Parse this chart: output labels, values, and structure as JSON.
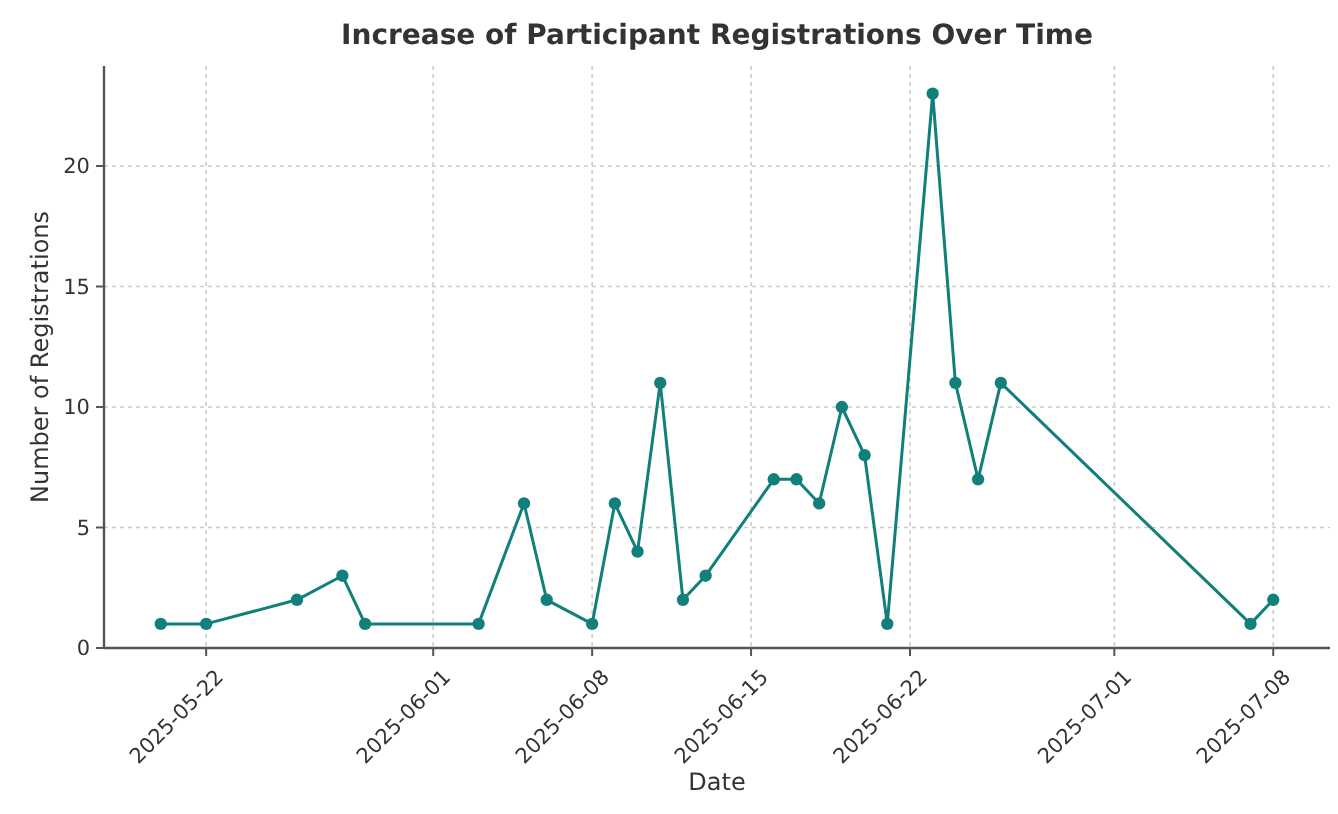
{
  "chart_data": {
    "type": "line",
    "title": "Increase of Participant Registrations Over Time",
    "xlabel": "Date",
    "ylabel": "Number of Registrations",
    "x": [
      "2025-05-20",
      "2025-05-22",
      "2025-05-26",
      "2025-05-28",
      "2025-05-29",
      "2025-06-03",
      "2025-06-05",
      "2025-06-06",
      "2025-06-08",
      "2025-06-09",
      "2025-06-10",
      "2025-06-11",
      "2025-06-12",
      "2025-06-13",
      "2025-06-16",
      "2025-06-17",
      "2025-06-18",
      "2025-06-19",
      "2025-06-20",
      "2025-06-21",
      "2025-06-23",
      "2025-06-24",
      "2025-06-25",
      "2025-06-26",
      "2025-07-07",
      "2025-07-08"
    ],
    "series": [
      {
        "color": "#11807a",
        "values": [
          1,
          1,
          2,
          3,
          1,
          1,
          6,
          2,
          1,
          6,
          4,
          11,
          2,
          3,
          7,
          7,
          6,
          10,
          8,
          1,
          23,
          11,
          7,
          11,
          1,
          2
        ]
      }
    ],
    "xlim": [
      "2025-05-17T12:00",
      "2025-07-10T12:00"
    ],
    "xticks": [
      "2025-05-22",
      "2025-06-01",
      "2025-06-08",
      "2025-06-15",
      "2025-06-22",
      "2025-07-01",
      "2025-07-08"
    ],
    "ylim": [
      0,
      24.15
    ],
    "yticks": [
      0,
      5,
      10,
      15,
      20
    ],
    "grid": true,
    "marker": "circle",
    "line_style": "solid"
  }
}
